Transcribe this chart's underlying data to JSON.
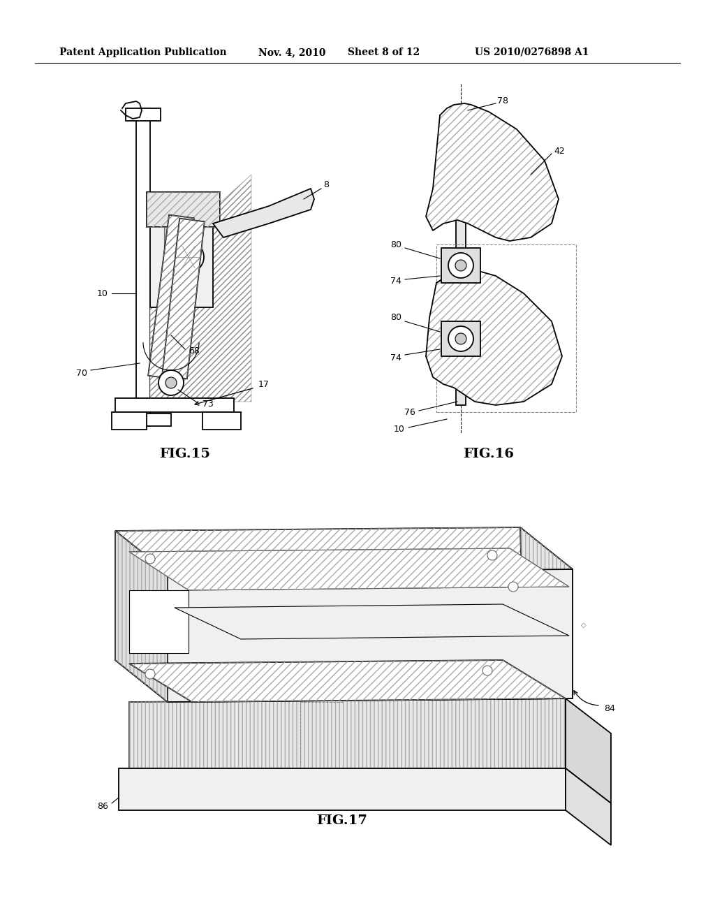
{
  "background_color": "#ffffff",
  "header_text": "Patent Application Publication",
  "header_date": "Nov. 4, 2010",
  "header_sheet": "Sheet 8 of 12",
  "header_patent": "US 2010/0276898 A1",
  "fig15_caption": "FIG.15",
  "fig16_caption": "FIG.16",
  "fig17_caption": "FIG.17",
  "line_color": "#000000",
  "text_color": "#000000",
  "font_size_header": 10,
  "font_size_label": 9,
  "font_size_caption": 14
}
